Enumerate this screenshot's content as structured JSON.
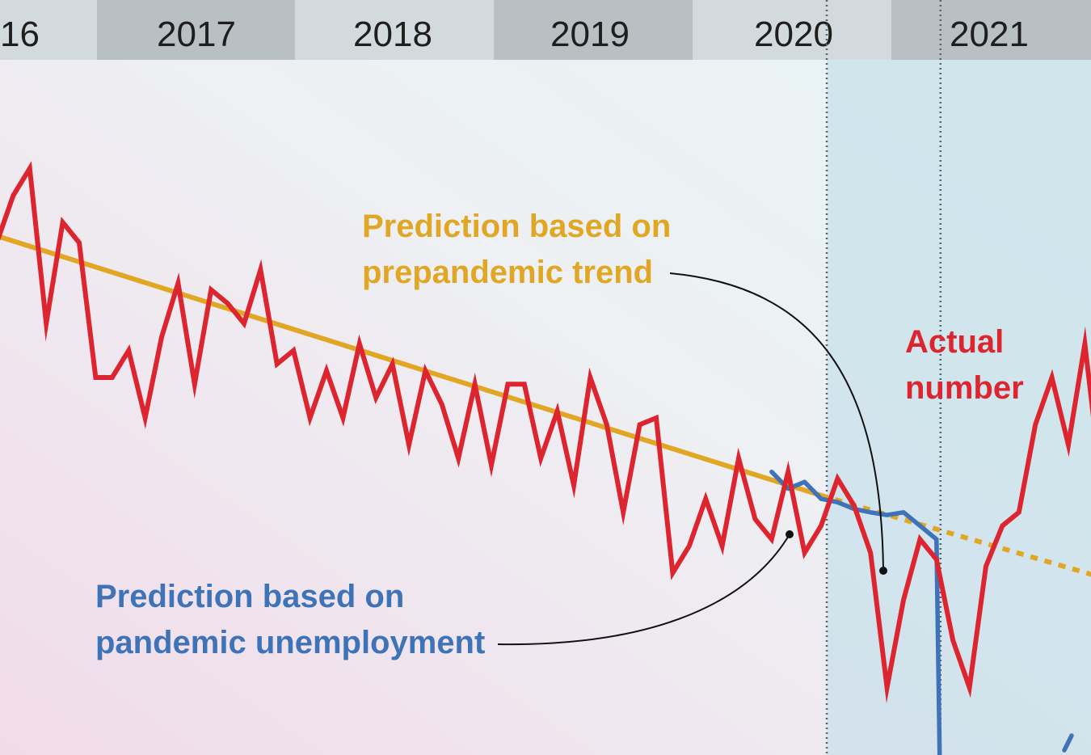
{
  "chart_data": {
    "type": "line",
    "title": "",
    "xlabel": "",
    "ylabel": "",
    "grid": false,
    "legend": "none",
    "x_range": [
      "2016-01",
      "2021-12"
    ],
    "y_range": [
      0,
      100
    ],
    "year_bands": [
      "16",
      "2017",
      "2018",
      "2019",
      "2020",
      "2021"
    ],
    "reference_dates": [
      "2020-03",
      "2020-10"
    ],
    "colors": {
      "actual": "#dd2530",
      "prepandemic_trend": "#e1a623",
      "pandemic_unemployment": "#3f73b8",
      "band_dark": "#b9c0c3",
      "band_light": "#d3dadd",
      "pandemic_shade": "#bcdbe8"
    },
    "annotations": {
      "prepandemic_line1": "Prediction based on",
      "prepandemic_line2": "prepandemic trend",
      "pandemic_line1": "Prediction based on",
      "pandemic_line2": "pandemic unemployment",
      "actual_line1": "Actual",
      "actual_line2": "number"
    },
    "series": [
      {
        "id": "actual",
        "x": [
          "2016-01",
          "2016-02",
          "2016-03",
          "2016-04",
          "2016-05",
          "2016-06",
          "2016-07",
          "2016-08",
          "2016-09",
          "2016-10",
          "2016-11",
          "2016-12",
          "2017-01",
          "2017-02",
          "2017-03",
          "2017-04",
          "2017-05",
          "2017-06",
          "2017-07",
          "2017-08",
          "2017-09",
          "2017-10",
          "2017-11",
          "2017-12",
          "2018-01",
          "2018-02",
          "2018-03",
          "2018-04",
          "2018-05",
          "2018-06",
          "2018-07",
          "2018-08",
          "2018-09",
          "2018-10",
          "2018-11",
          "2018-12",
          "2019-01",
          "2019-02",
          "2019-03",
          "2019-04",
          "2019-05",
          "2019-06",
          "2019-07",
          "2019-08",
          "2019-09",
          "2019-10",
          "2019-11",
          "2019-12",
          "2020-01",
          "2020-02",
          "2020-03",
          "2020-04",
          "2020-05",
          "2020-06",
          "2020-07",
          "2020-08",
          "2020-09",
          "2020-10",
          "2020-11",
          "2020-12",
          "2021-01",
          "2021-02",
          "2021-03",
          "2021-04",
          "2021-05",
          "2021-06",
          "2021-07",
          "2021-08",
          "2021-09",
          "2021-10",
          "2021-11",
          "2021-12"
        ],
        "values": [
          76,
          83,
          87,
          64,
          79,
          76,
          56,
          56,
          60,
          50,
          62,
          70,
          55,
          69,
          67,
          64,
          72,
          58,
          60,
          50,
          57,
          50,
          61,
          53,
          58,
          46,
          57,
          52,
          44,
          55,
          43,
          55,
          55,
          44,
          51,
          40,
          56,
          49,
          36,
          49,
          50,
          27,
          31,
          38,
          31,
          44,
          35,
          32,
          42,
          30,
          34,
          41,
          37,
          30,
          10,
          23,
          32,
          29,
          17,
          10,
          28,
          34,
          36,
          49,
          56,
          46,
          61,
          40,
          60,
          33,
          50,
          47
        ]
      },
      {
        "id": "prepandemic_trend",
        "x": [
          "2016-01",
          "2020-03"
        ],
        "values": [
          77,
          38.5
        ]
      },
      {
        "id": "prepandemic_trend_projected",
        "x": [
          "2020-03",
          "2021-12"
        ],
        "values": [
          38.5,
          23.5
        ]
      },
      {
        "id": "pandemic_unemployment",
        "x": [
          "2019-12",
          "2020-01",
          "2020-02",
          "2020-03",
          "2020-04",
          "2020-05",
          "2020-06",
          "2020-07",
          "2020-08",
          "2020-09",
          "2020-10"
        ],
        "values": [
          42,
          39.5,
          40.5,
          38,
          37.5,
          36.5,
          36,
          35.6,
          36,
          34,
          32
        ]
      }
    ]
  }
}
